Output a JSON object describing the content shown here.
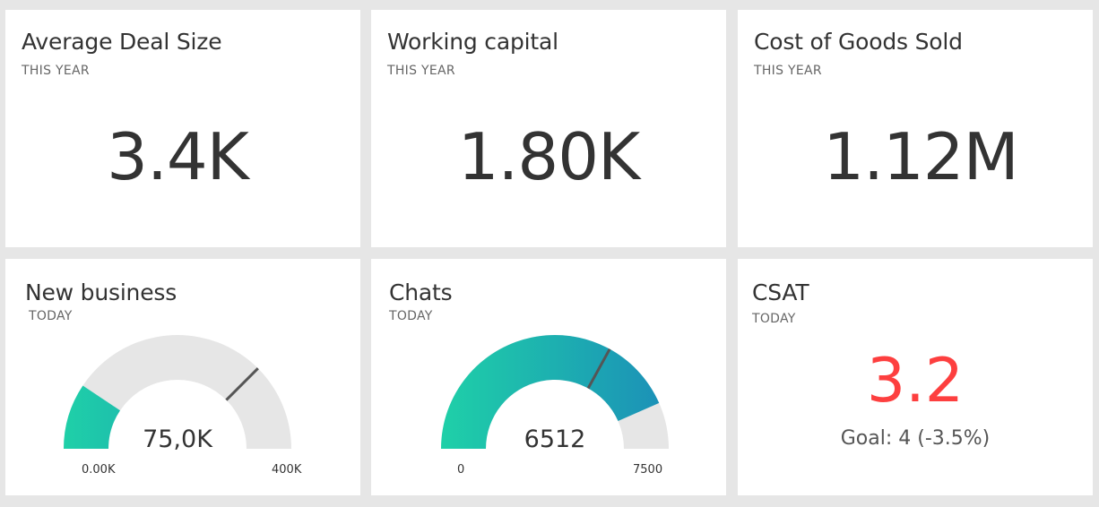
{
  "tiles": {
    "avg_deal_size": {
      "title": "Average Deal Size",
      "subtitle": "THIS YEAR",
      "value": "3.4K"
    },
    "working_capital": {
      "title": "Working capital",
      "subtitle": "THIS YEAR",
      "value": "1.80K"
    },
    "cogs": {
      "title": "Cost of Goods Sold",
      "subtitle": "THIS YEAR",
      "value": "1.12M"
    },
    "new_business": {
      "title": "New business",
      "subtitle": "TODAY",
      "value_label": "75,0K",
      "min_label": "0.00K",
      "max_label": "400K",
      "value": 75000,
      "min": 0,
      "max": 400000,
      "target_fraction": 0.75
    },
    "chats": {
      "title": "Chats",
      "subtitle": "TODAY",
      "value_label": "6512",
      "min_label": "0",
      "max_label": "7500",
      "value": 6512,
      "min": 0,
      "max": 7500,
      "target_fraction": 0.66
    },
    "csat": {
      "title": "CSAT",
      "subtitle": "TODAY",
      "value": "3.2",
      "goal": "Goal: 4 (-3.5%)"
    }
  },
  "colors": {
    "background": "#e6e6e6",
    "tile": "#ffffff",
    "text": "#333333",
    "gauge_track": "#e6e6e6",
    "gauge_fill_start": "#1fd0a8",
    "gauge_fill_end": "#1b8fb8",
    "target_line": "#555555",
    "csat_value": "#fd3f3f"
  }
}
